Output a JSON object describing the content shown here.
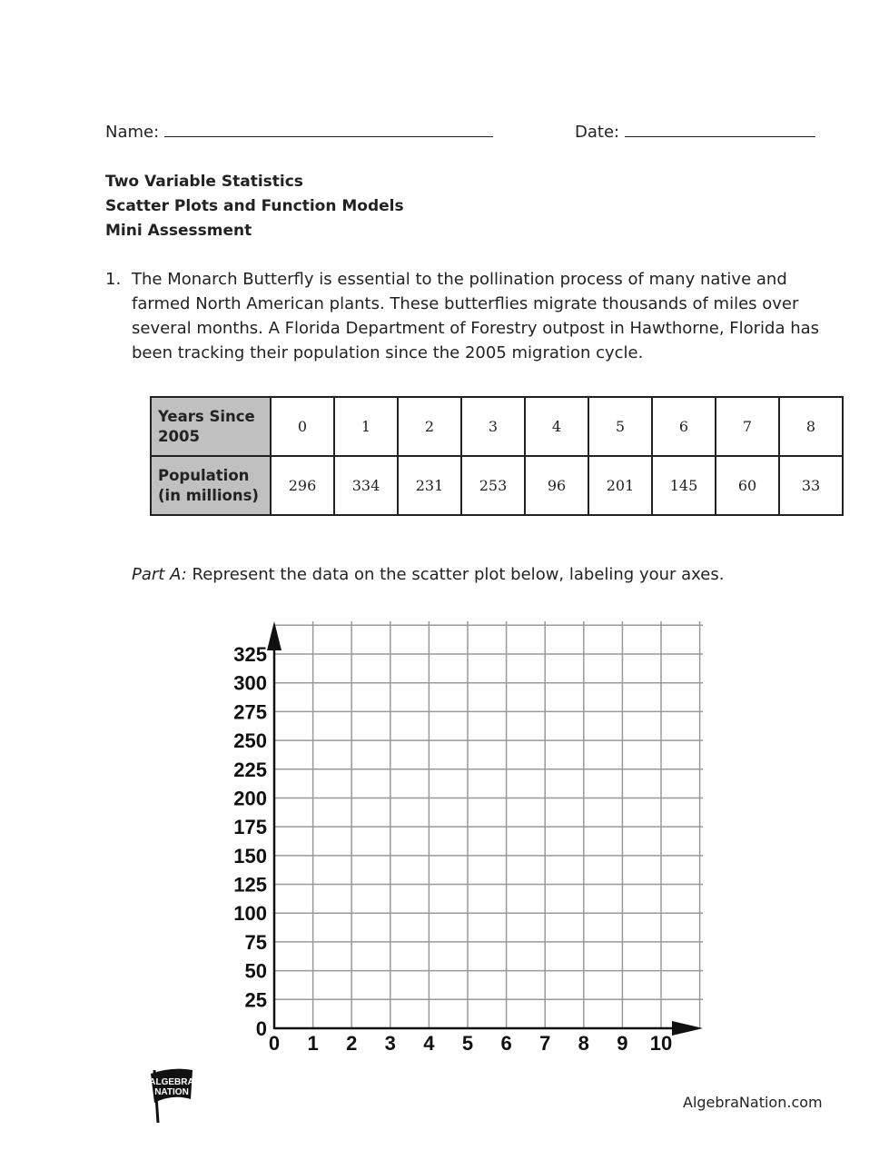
{
  "header": {
    "name_label": "Name:",
    "date_label": "Date:"
  },
  "titles": [
    "Two Variable Statistics",
    "Scatter Plots and Function Models",
    "Mini Assessment"
  ],
  "question": {
    "number": "1.",
    "lines": [
      "The Monarch Butterfly is essential to the pollination process of many native and",
      "farmed North American plants. These butterflies migrate thousands of miles over",
      "several months. A Florida Department of Forestry outpost in Hawthorne, Florida has",
      "been tracking their population since the 2005 migration cycle."
    ]
  },
  "table": {
    "row_headers": [
      "Years Since 2005",
      "Population (in millions)"
    ],
    "years": [
      "0",
      "1",
      "2",
      "3",
      "4",
      "5",
      "6",
      "7",
      "8"
    ],
    "population": [
      "296",
      "334",
      "231",
      "253",
      "96",
      "201",
      "145",
      "60",
      "33"
    ]
  },
  "part_a": {
    "label": "Part A:",
    "text": " Represent the data on the scatter plot below, labeling your axes."
  },
  "chart_data": {
    "type": "scatter",
    "title": "",
    "xlabel": "",
    "ylabel": "",
    "xlim": [
      0,
      10
    ],
    "ylim": [
      0,
      325
    ],
    "x_ticks": [
      "0",
      "1",
      "2",
      "3",
      "4",
      "5",
      "6",
      "7",
      "8",
      "9",
      "10"
    ],
    "y_ticks": [
      "0",
      "25",
      "50",
      "75",
      "100",
      "125",
      "150",
      "175",
      "200",
      "225",
      "250",
      "275",
      "300",
      "325"
    ],
    "grid": true,
    "points": []
  },
  "footer": {
    "logo_text": "ALGEBRA NATION",
    "site": "AlgebraNation.com"
  }
}
